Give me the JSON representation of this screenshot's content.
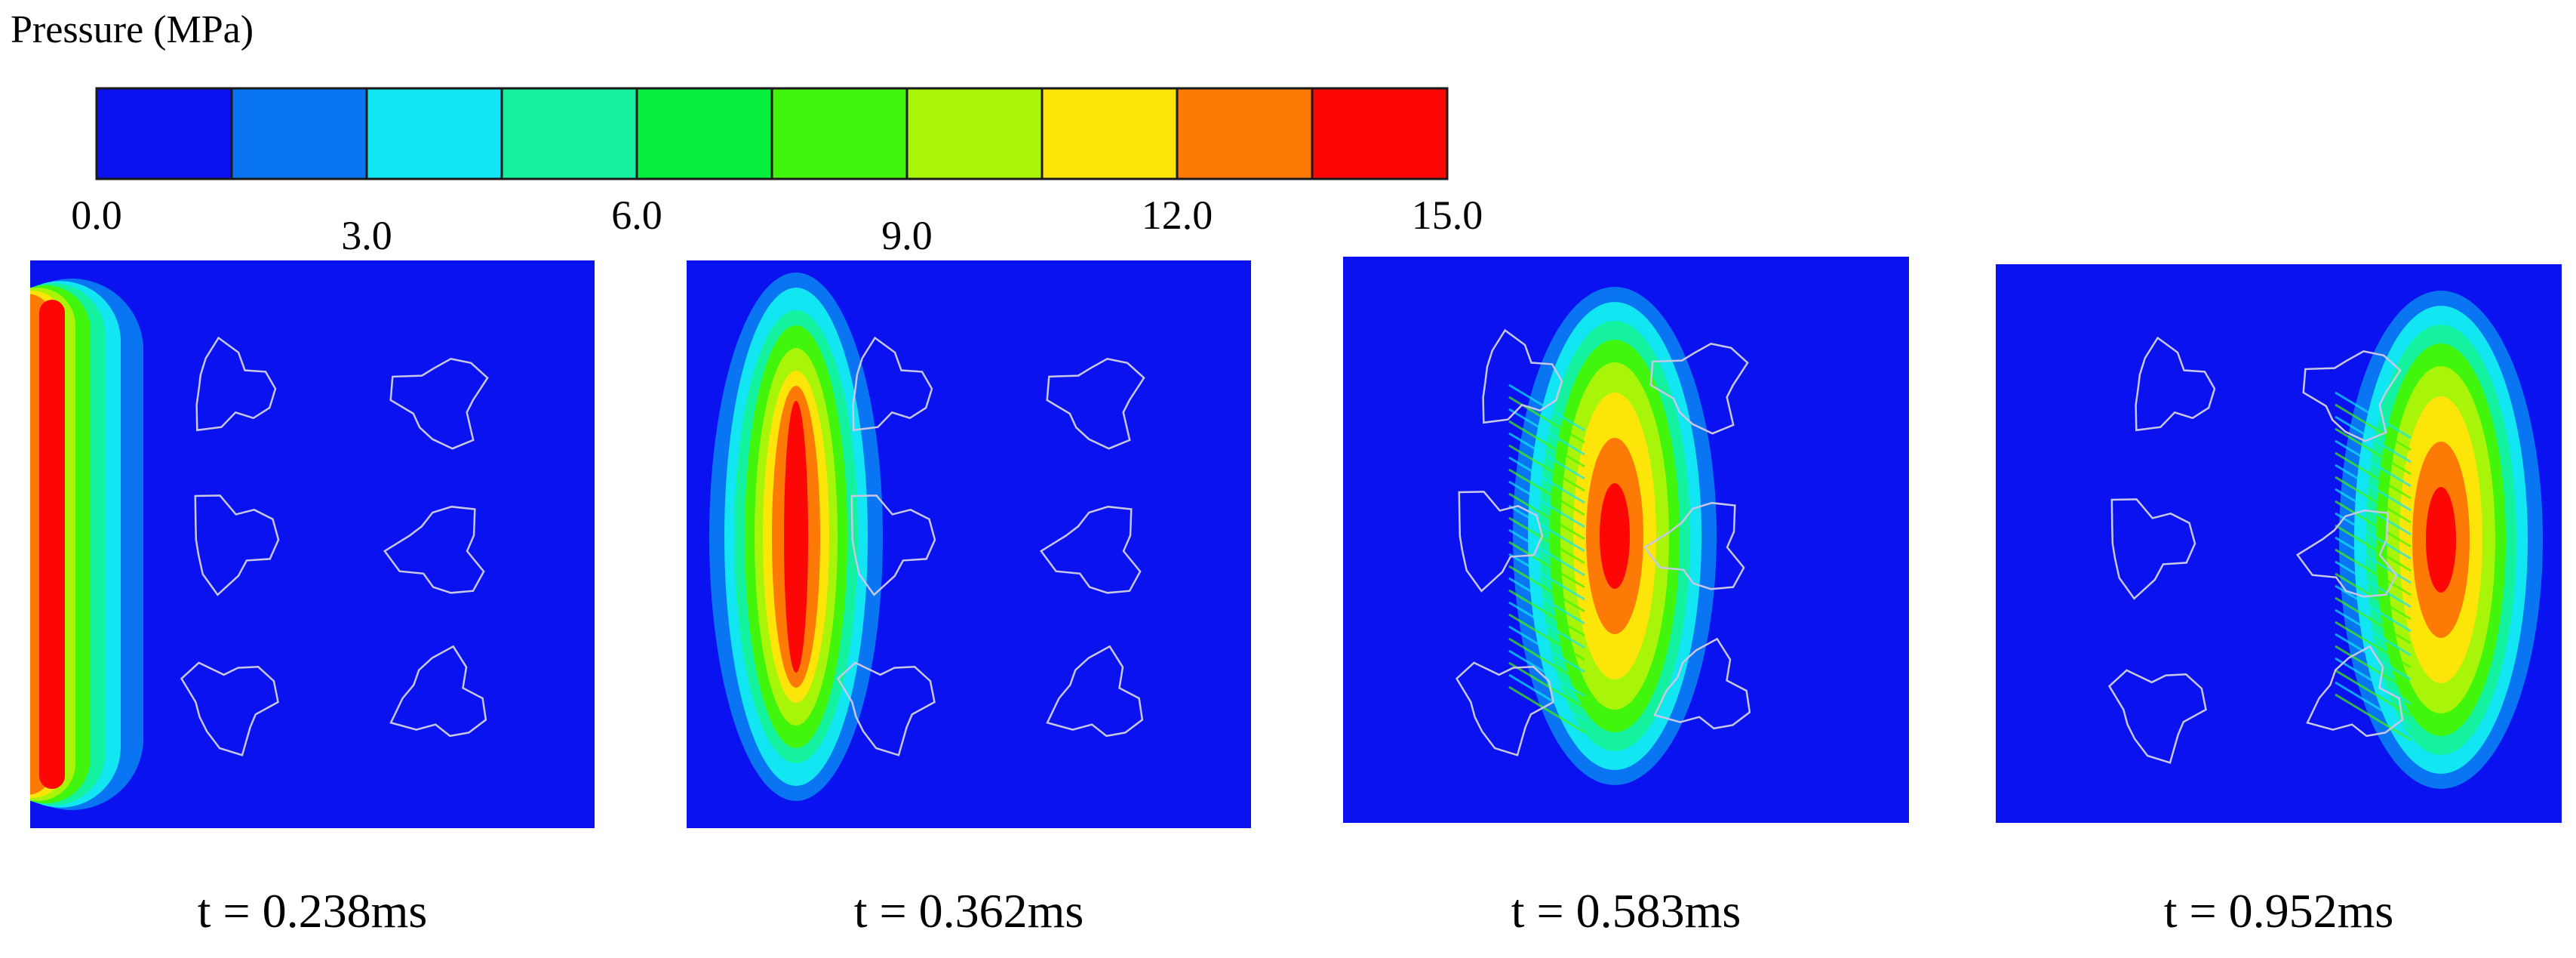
{
  "legend": {
    "title": "Pressure (MPa)",
    "colors": [
      "#0a12ef",
      "#0a75f2",
      "#12e6f2",
      "#14f2a0",
      "#06ee3e",
      "#42f50c",
      "#a9f50a",
      "#fde50a",
      "#fd7a06",
      "#fd0606"
    ],
    "ticks": [
      {
        "label": "0.0",
        "value": 0,
        "row": "top"
      },
      {
        "label": "3.0",
        "value": 3,
        "row": "low"
      },
      {
        "label": "6.0",
        "value": 6,
        "row": "top"
      },
      {
        "label": "9.0",
        "value": 9,
        "row": "low"
      },
      {
        "label": "12.0",
        "value": 12,
        "row": "top"
      },
      {
        "label": "15.0",
        "value": 15,
        "row": "top"
      }
    ],
    "min": 0,
    "max": 15
  },
  "snapshots": [
    {
      "time": "t = 0.238ms"
    },
    {
      "time": "t = 0.362ms"
    },
    {
      "time": "t = 0.583ms"
    },
    {
      "time": "t = 0.952ms"
    }
  ]
}
